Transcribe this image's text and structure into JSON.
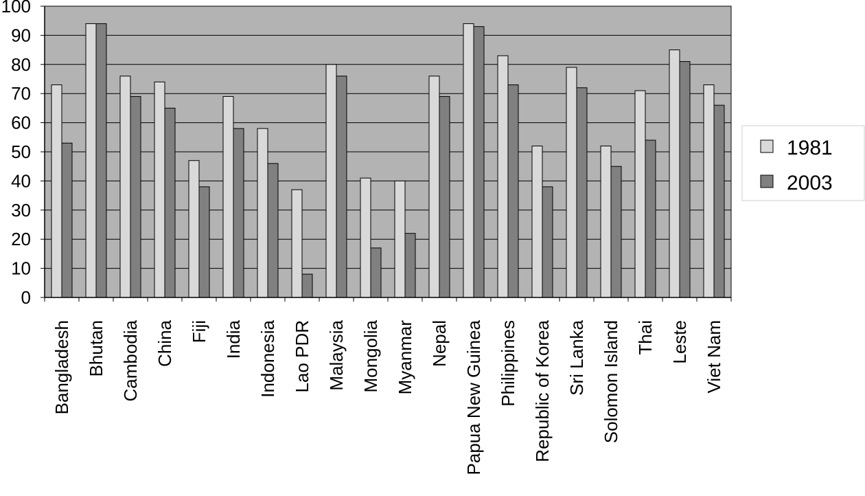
{
  "chart_data": {
    "type": "bar",
    "categories": [
      "Bangladesh",
      "Bhutan",
      "Cambodia",
      "China",
      "Fiji",
      "India",
      "Indonesia",
      "Lao PDR",
      "Malaysia",
      "Mongolia",
      "Myanmar",
      "Nepal",
      "Papua New Guinea",
      "Philippines",
      "Republic of Korea",
      "Sri Lanka",
      "Solomon Island",
      "Thai",
      "Leste",
      "Viet Nam"
    ],
    "series": [
      {
        "name": "1981",
        "color": "#d9d9d9",
        "values": [
          73,
          94,
          76,
          74,
          47,
          69,
          58,
          37,
          80,
          41,
          40,
          76,
          94,
          83,
          52,
          79,
          52,
          71,
          85,
          73
        ]
      },
      {
        "name": "2003",
        "color": "#808080",
        "values": [
          53,
          94,
          69,
          65,
          38,
          58,
          46,
          8,
          76,
          17,
          22,
          69,
          93,
          73,
          38,
          72,
          45,
          54,
          81,
          66
        ]
      }
    ],
    "ylim": [
      0,
      100
    ],
    "yticks": [
      "0",
      "10",
      "20",
      "30",
      "40",
      "50",
      "60",
      "70",
      "80",
      "90",
      "100"
    ],
    "plot_background": "#b3b3b3",
    "grid": true,
    "legend_position": "right"
  }
}
